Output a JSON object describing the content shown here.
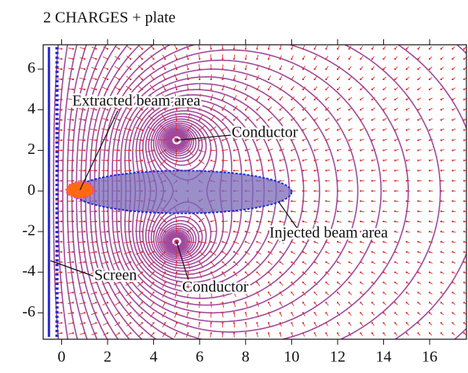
{
  "chart_data": {
    "type": "field",
    "title": "2 CHARGES + plate",
    "xlim": [
      -0.8,
      17.6
    ],
    "ylim": [
      -7.3,
      7.2
    ],
    "xticks": [
      0,
      2,
      4,
      6,
      8,
      10,
      12,
      14,
      16
    ],
    "yticks": [
      -6,
      -4,
      -2,
      0,
      2,
      4,
      6
    ],
    "screen": {
      "label": "Screen",
      "x": [
        -0.55,
        -0.2
      ],
      "color": "#2a2ad0"
    },
    "charges": [
      {
        "label": "Conductor",
        "x": 5,
        "y": 2.5
      },
      {
        "label": "Conductor",
        "x": 5,
        "y": -2.5
      }
    ],
    "injected_beam": {
      "label": "Injected beam area",
      "cx": 5.25,
      "cy": -0.05,
      "rx": 4.75,
      "ry": 1.05,
      "color": "#7a6ab8"
    },
    "extracted_beam": {
      "label": "Extracted beam area",
      "cx": 0.8,
      "cy": 0.05,
      "rx": 0.6,
      "ry": 0.4,
      "color": "#ff6a10"
    },
    "contour_color": "#a0489c",
    "vector_color": "#d83030"
  }
}
